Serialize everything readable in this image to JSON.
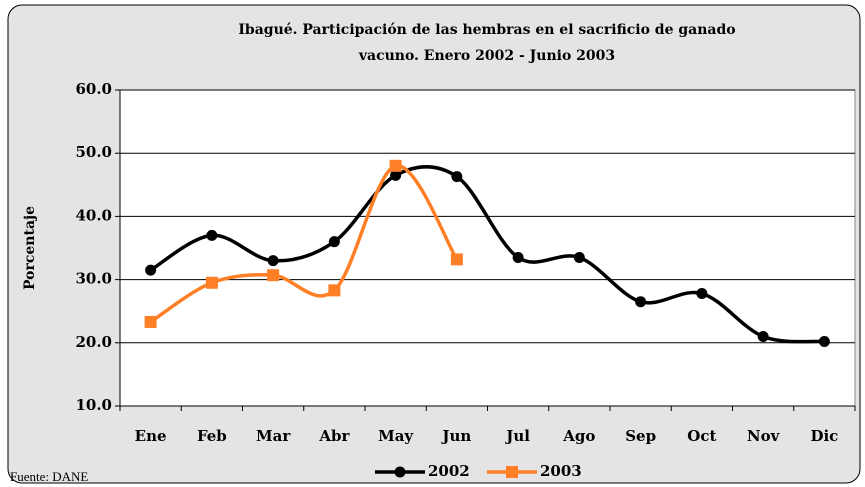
{
  "chart_data": {
    "type": "line",
    "title": [
      "Ibagué. Participación de las hembras en el sacrificio de ganado",
      "vacuno. Enero 2002 - Junio 2003"
    ],
    "y_label": "Porcentaje",
    "source": "Fuente: DANE",
    "categories": [
      "Ene",
      "Feb",
      "Mar",
      "Abr",
      "May",
      "Jun",
      "Jul",
      "Ago",
      "Sep",
      "Oct",
      "Nov",
      "Dic"
    ],
    "series": [
      {
        "name": "2002",
        "color": "#000000",
        "marker": "circle",
        "values": [
          31.5,
          37.0,
          33.0,
          36.0,
          46.5,
          46.3,
          33.5,
          33.5,
          26.5,
          27.8,
          21.0,
          20.2
        ]
      },
      {
        "name": "2003",
        "color": "#ff7f27",
        "marker": "square",
        "values": [
          23.3,
          29.5,
          30.7,
          28.3,
          48.0,
          33.2,
          null,
          null,
          null,
          null,
          null,
          null
        ]
      }
    ],
    "ylim": [
      10,
      60
    ],
    "yticks": [
      {
        "value": 10,
        "label": "10.0"
      },
      {
        "value": 20,
        "label": "20.0"
      },
      {
        "value": 30,
        "label": "30.0"
      },
      {
        "value": 40,
        "label": "40.0"
      },
      {
        "value": 50,
        "label": "50.0"
      },
      {
        "value": 60,
        "label": "60.0"
      }
    ],
    "grid": true,
    "smooth": true,
    "legend": "bottom"
  }
}
